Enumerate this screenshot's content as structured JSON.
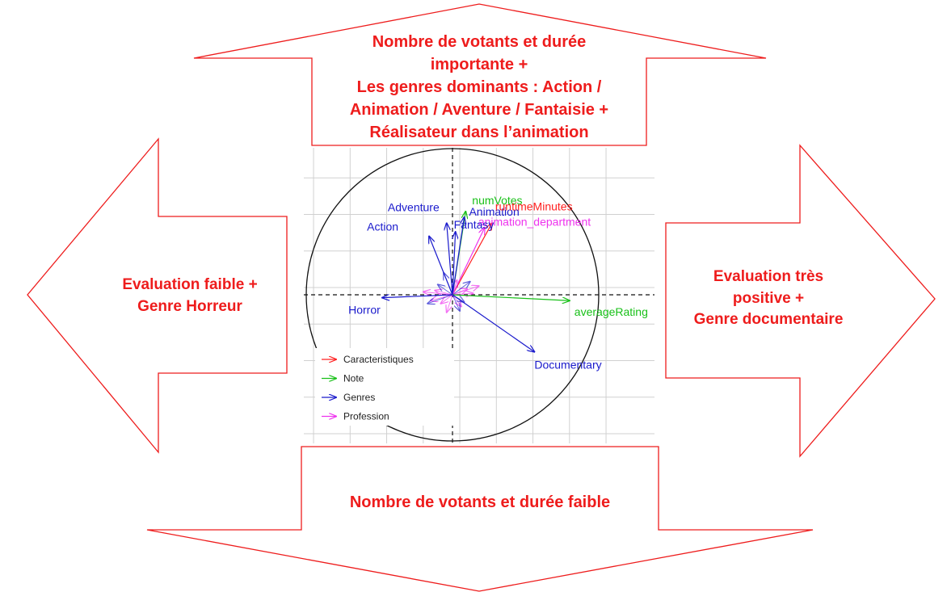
{
  "callouts": {
    "top": [
      "Nombre de votants et durée",
      "importante +",
      "Les genres dominants : Action /",
      "Animation / Aventure / Fantaisie +",
      "Réalisateur dans l’animation"
    ],
    "left": [
      "Evaluation faible +",
      "Genre Horreur"
    ],
    "right": [
      "Evaluation très",
      "positive +",
      "Genre documentaire"
    ],
    "bottom": [
      "Nombre de votants et durée faible"
    ]
  },
  "colors": {
    "callout_outline": "#ee1c1c",
    "callout_text": "#ee1c1c",
    "caracteristiques": "#ff2020",
    "note": "#18c018",
    "genres": "#1a1acc",
    "profession": "#ee33ee"
  },
  "chart_data": {
    "type": "correlation-circle",
    "xlim": [
      -1,
      1
    ],
    "ylim": [
      -1,
      1
    ],
    "grid": true,
    "legend_position": "bottom-left",
    "legend": [
      {
        "name": "Caracteristiques",
        "color": "#ff2020"
      },
      {
        "name": "Note",
        "color": "#18c018"
      },
      {
        "name": "Genres",
        "color": "#1a1acc"
      },
      {
        "name": "Profession",
        "color": "#ee33ee"
      }
    ],
    "labeled_vectors": [
      {
        "label": "numVotes",
        "group": "Note",
        "x": 0.09,
        "y": 0.57
      },
      {
        "label": "Animation",
        "group": "Genres",
        "x": 0.08,
        "y": 0.53
      },
      {
        "label": "runtimeMinutes",
        "group": "Caracteristiques",
        "x": 0.27,
        "y": 0.49
      },
      {
        "label": "animation_department",
        "group": "Profession",
        "x": 0.22,
        "y": 0.46
      },
      {
        "label": "Fantasy",
        "group": "Genres",
        "x": 0.02,
        "y": 0.43
      },
      {
        "label": "Adventure",
        "group": "Genres",
        "x": -0.04,
        "y": 0.49
      },
      {
        "label": "Action",
        "group": "Genres",
        "x": -0.16,
        "y": 0.4
      },
      {
        "label": "averageRating",
        "group": "Note",
        "x": 0.8,
        "y": -0.04
      },
      {
        "label": "Horror",
        "group": "Genres",
        "x": -0.48,
        "y": -0.02
      },
      {
        "label": "Documentary",
        "group": "Genres",
        "x": 0.56,
        "y": -0.39
      }
    ],
    "minor_vectors": [
      {
        "group": "Profession",
        "x": 0.1,
        "y": 0.04
      },
      {
        "group": "Profession",
        "x": -0.12,
        "y": 0.03
      },
      {
        "group": "Profession",
        "x": -0.08,
        "y": -0.06
      },
      {
        "group": "Profession",
        "x": 0.06,
        "y": -0.08
      },
      {
        "group": "Profession",
        "x": 0.14,
        "y": 0.01
      },
      {
        "group": "Profession",
        "x": -0.2,
        "y": 0.02
      },
      {
        "group": "Profession",
        "x": 0.03,
        "y": 0.1
      },
      {
        "group": "Profession",
        "x": -0.04,
        "y": -0.12
      },
      {
        "group": "Profession",
        "x": 0.18,
        "y": 0.06
      },
      {
        "group": "Profession",
        "x": -0.15,
        "y": -0.04
      },
      {
        "group": "Genres",
        "x": -0.1,
        "y": 0.07
      },
      {
        "group": "Genres",
        "x": 0.08,
        "y": -0.05
      },
      {
        "group": "Genres",
        "x": -0.06,
        "y": 0.15
      },
      {
        "group": "Genres",
        "x": 0.12,
        "y": 0.09
      },
      {
        "group": "Genres",
        "x": -0.17,
        "y": -0.06
      },
      {
        "group": "Genres",
        "x": 0.05,
        "y": -0.11
      }
    ]
  }
}
